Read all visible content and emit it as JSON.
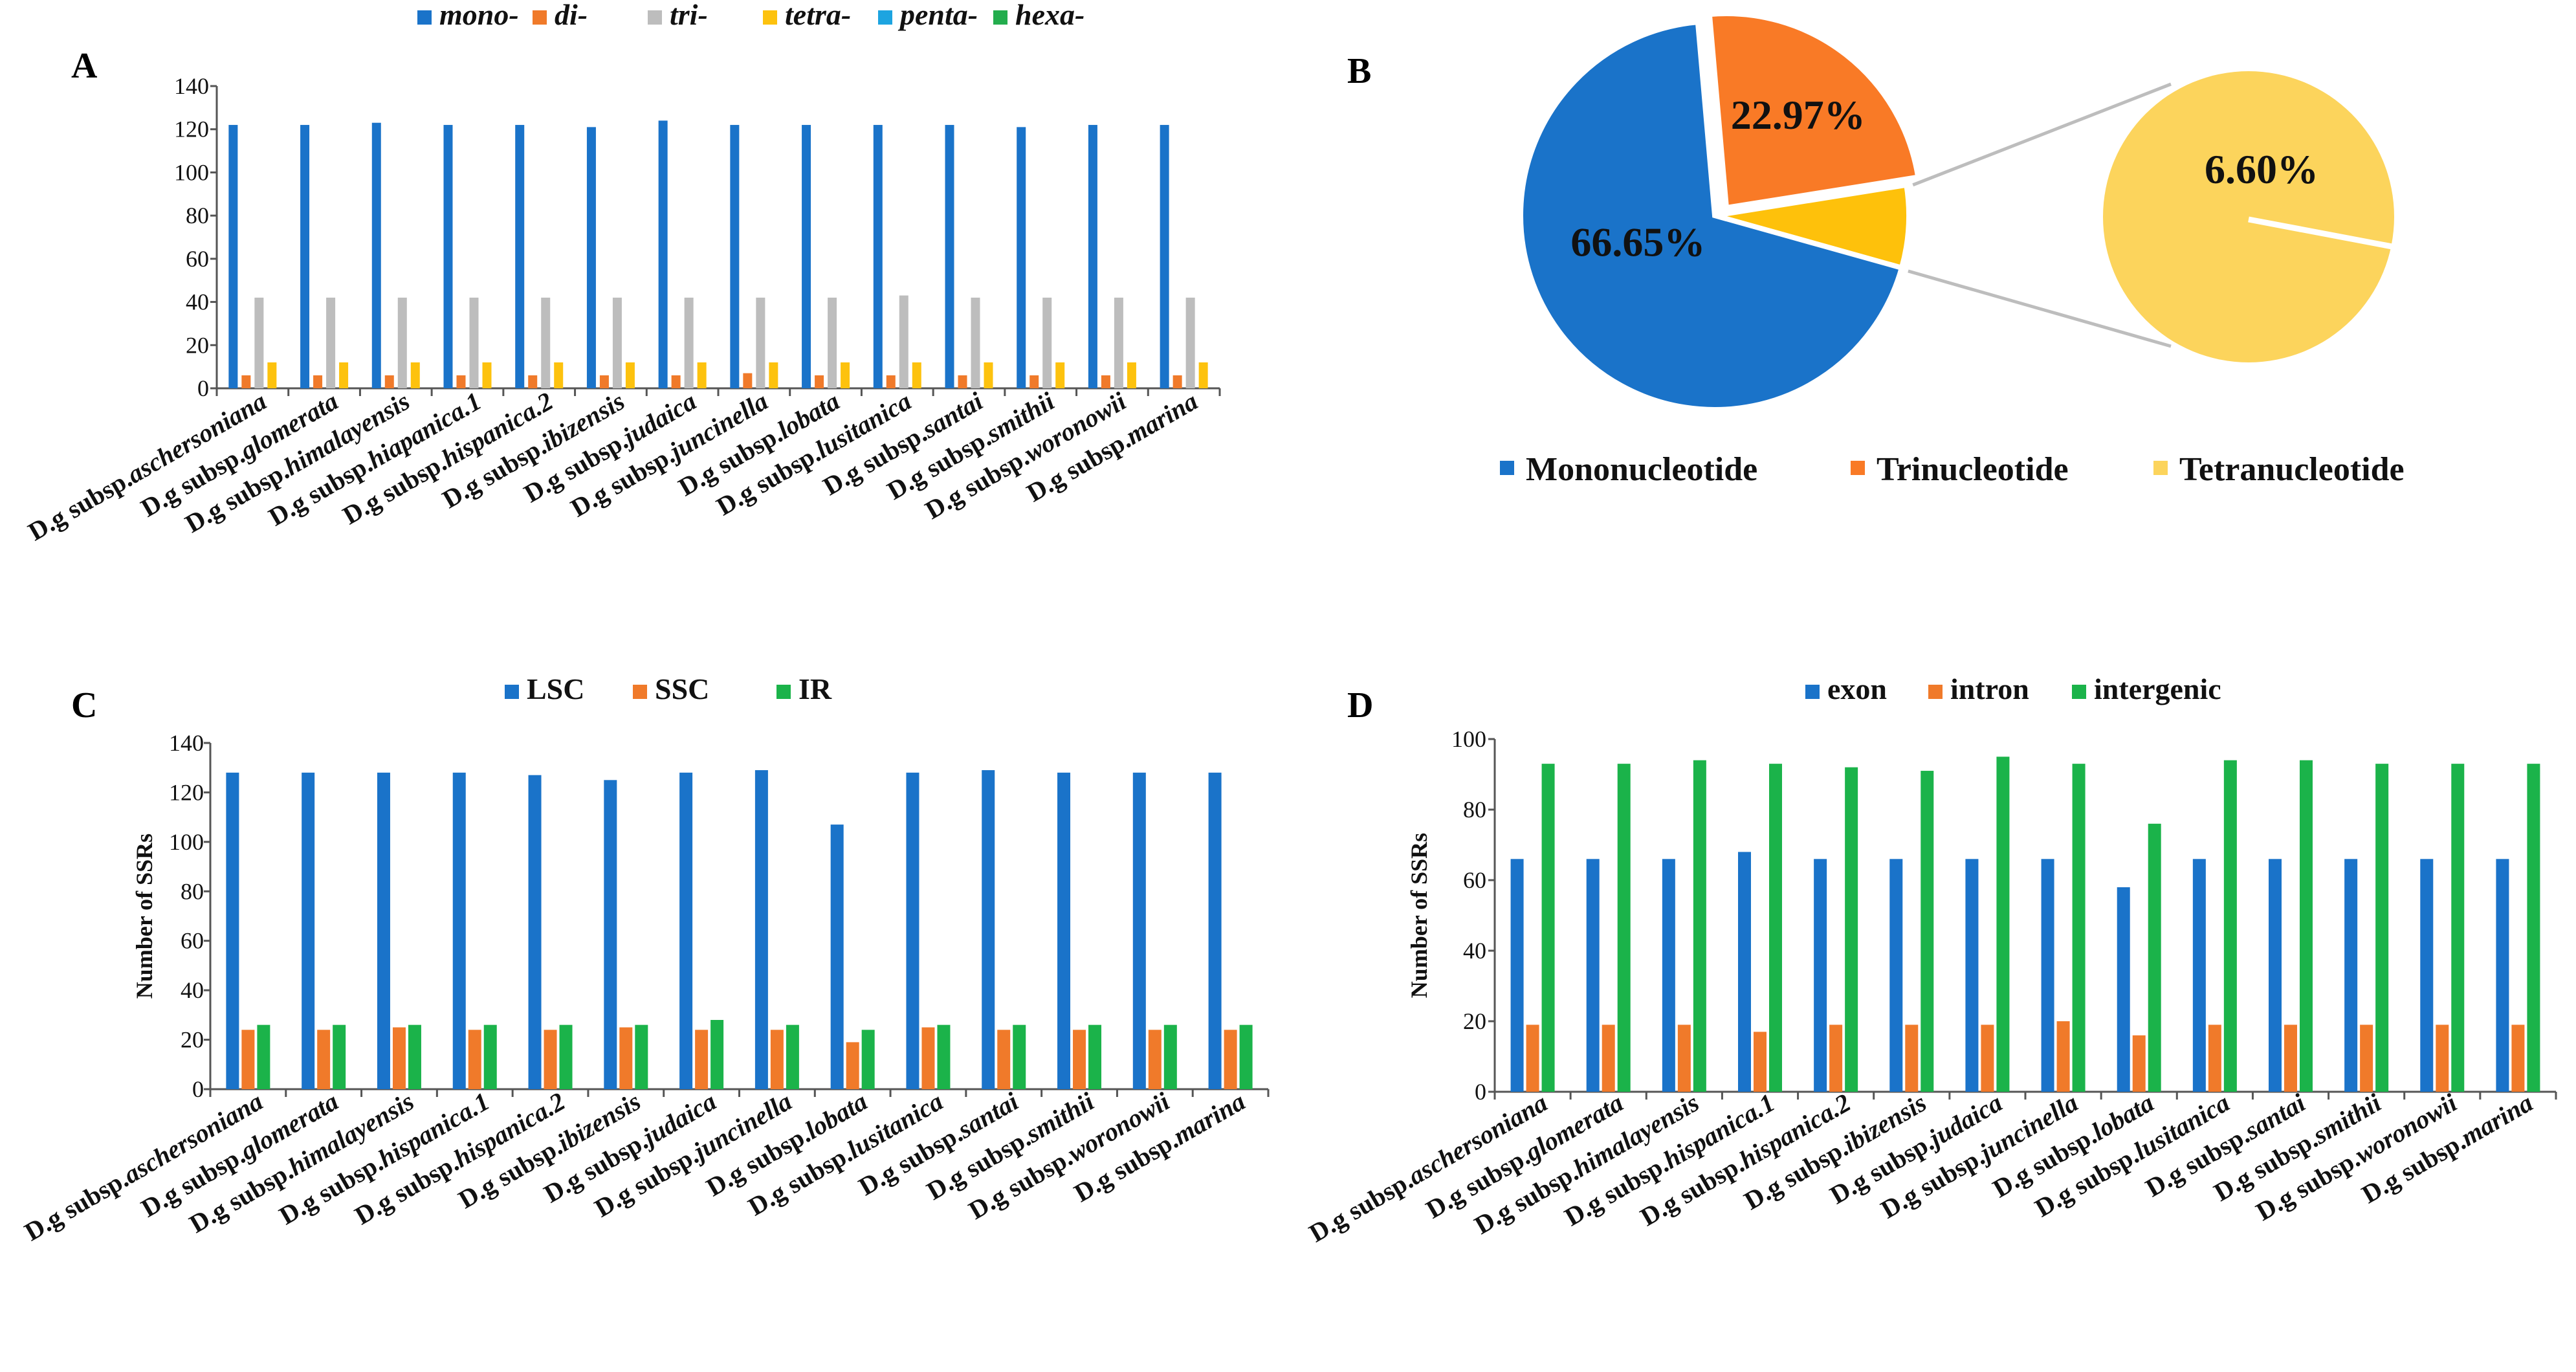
{
  "colors": {
    "mono": "#1a73c9",
    "di": "#f07a2a",
    "tri": "#bdbdbd",
    "tetra": "#fdc20e",
    "penta": "#1da4e0",
    "hexa": "#23ad4d",
    "LSC": "#1a73c9",
    "SSC": "#f07a2a",
    "IR": "#1bb34a",
    "exon": "#1a73c9",
    "intron": "#f07a2a",
    "intergenic": "#1bb34a",
    "pie_mono": "#1a73c9",
    "pie_tri": "#f97a26",
    "pie_tetra": "#fec10b",
    "pie_zoom": "#fcd45c"
  },
  "chart_data": [
    {
      "id": "A",
      "panel_label": "A",
      "type": "bar",
      "title": "",
      "xlabel": "",
      "ylabel": "",
      "ylim": [
        0,
        140
      ],
      "yticks": [
        "0",
        "20",
        "40",
        "60",
        "80",
        "100",
        "120",
        "140"
      ],
      "categories_prefix": "D.g subsp.",
      "categories": [
        "aschersoniana",
        "glomerata",
        "himalayensis",
        "hiapanica.1",
        "hispanica.2",
        "ibizensis",
        "judaica",
        "juncinella",
        "lobata",
        "lusitanica",
        "santai",
        "smithii",
        "woronowii",
        "marina"
      ],
      "legend": [
        {
          "key": "mono",
          "label": "mono-"
        },
        {
          "key": "di",
          "label": "di-"
        },
        {
          "key": "tri",
          "label": "tri-"
        },
        {
          "key": "tetra",
          "label": "tetra-"
        },
        {
          "key": "penta",
          "label": "penta-"
        },
        {
          "key": "hexa",
          "label": "hexa-"
        }
      ],
      "series": [
        {
          "key": "mono",
          "name": "mono-",
          "values": [
            122,
            122,
            123,
            122,
            122,
            121,
            124,
            122,
            122,
            122,
            122,
            121,
            122,
            122
          ]
        },
        {
          "key": "di",
          "name": "di-",
          "values": [
            6,
            6,
            6,
            6,
            6,
            6,
            6,
            7,
            6,
            6,
            6,
            6,
            6,
            6
          ]
        },
        {
          "key": "tri",
          "name": "tri-",
          "values": [
            42,
            42,
            42,
            42,
            42,
            42,
            42,
            42,
            42,
            43,
            42,
            42,
            42,
            42
          ]
        },
        {
          "key": "tetra",
          "name": "tetra-",
          "values": [
            12,
            12,
            12,
            12,
            12,
            12,
            12,
            12,
            12,
            12,
            12,
            12,
            12,
            12
          ]
        },
        {
          "key": "penta",
          "name": "penta-",
          "values": [
            0,
            0,
            0,
            0,
            0,
            0,
            0,
            0,
            0,
            0,
            0,
            0,
            0,
            0
          ]
        },
        {
          "key": "hexa",
          "name": "hexa-",
          "values": [
            0,
            0,
            0,
            0,
            0,
            0,
            0,
            0,
            0,
            0,
            0,
            0,
            0,
            0
          ]
        }
      ]
    },
    {
      "id": "B",
      "panel_label": "B",
      "type": "pie",
      "slices": [
        {
          "key": "pie_mono",
          "label": "Mononucleotide",
          "value": 66.65,
          "text": "66.65%"
        },
        {
          "key": "pie_tri",
          "label": "Trinucleotide",
          "value": 22.97,
          "text": "22.97%"
        },
        {
          "key": "pie_tetra",
          "label": "Tetranucleotide",
          "value": 6.6,
          "text": "6.60%"
        }
      ],
      "legend": [
        {
          "key": "pie_mono",
          "label": "Mononucleotide"
        },
        {
          "key": "pie_tri",
          "label": "Trinucleotide"
        },
        {
          "key": "pie_zoom",
          "label": "Tetranucleotide"
        }
      ],
      "zoom_label": "6.60%"
    },
    {
      "id": "C",
      "panel_label": "C",
      "type": "bar",
      "title": "",
      "xlabel": "",
      "ylabel": "Number of SSRs",
      "ylim": [
        0,
        140
      ],
      "yticks": [
        "0",
        "20",
        "40",
        "60",
        "80",
        "100",
        "120",
        "140"
      ],
      "categories_prefix": "D.g subsp.",
      "categories": [
        "aschersoniana",
        "glomerata",
        "himalayensis",
        "hispanica.1",
        "hispanica.2",
        "ibizensis",
        "judaica",
        "juncinella",
        "lobata",
        "lusitanica",
        "santai",
        "smithii",
        "woronowii",
        "marina"
      ],
      "legend": [
        {
          "key": "LSC",
          "label": "LSC"
        },
        {
          "key": "SSC",
          "label": "SSC"
        },
        {
          "key": "IR",
          "label": "IR"
        }
      ],
      "series": [
        {
          "key": "LSC",
          "name": "LSC",
          "values": [
            128,
            128,
            128,
            128,
            127,
            125,
            128,
            129,
            107,
            128,
            129,
            128,
            128,
            128
          ]
        },
        {
          "key": "SSC",
          "name": "SSC",
          "values": [
            24,
            24,
            25,
            24,
            24,
            25,
            24,
            24,
            19,
            25,
            24,
            24,
            24,
            24
          ]
        },
        {
          "key": "IR",
          "name": "IR",
          "values": [
            26,
            26,
            26,
            26,
            26,
            26,
            28,
            26,
            24,
            26,
            26,
            26,
            26,
            26
          ]
        }
      ]
    },
    {
      "id": "D",
      "panel_label": "D",
      "type": "bar",
      "title": "",
      "xlabel": "",
      "ylabel": "Number of SSRs",
      "ylim": [
        0,
        100
      ],
      "yticks": [
        "0",
        "20",
        "40",
        "60",
        "80",
        "100"
      ],
      "categories_prefix": "D.g subsp.",
      "categories": [
        "aschersoniana",
        "glomerata",
        "himalayensis",
        "hispanica.1",
        "hispanica.2",
        "ibizensis",
        "judaica",
        "juncinella",
        "lobata",
        "lusitanica",
        "santai",
        "smithii",
        "woronowii",
        "marina"
      ],
      "legend": [
        {
          "key": "exon",
          "label": "exon"
        },
        {
          "key": "intron",
          "label": "intron"
        },
        {
          "key": "intergenic",
          "label": "intergenic"
        }
      ],
      "series": [
        {
          "key": "exon",
          "name": "exon",
          "values": [
            66,
            66,
            66,
            68,
            66,
            66,
            66,
            66,
            58,
            66,
            66,
            66,
            66,
            66
          ]
        },
        {
          "key": "intron",
          "name": "intron",
          "values": [
            19,
            19,
            19,
            17,
            19,
            19,
            19,
            20,
            16,
            19,
            19,
            19,
            19,
            19
          ]
        },
        {
          "key": "intergenic",
          "name": "intergenic",
          "values": [
            93,
            93,
            94,
            93,
            92,
            91,
            95,
            93,
            76,
            94,
            94,
            93,
            93,
            93
          ]
        }
      ]
    }
  ]
}
